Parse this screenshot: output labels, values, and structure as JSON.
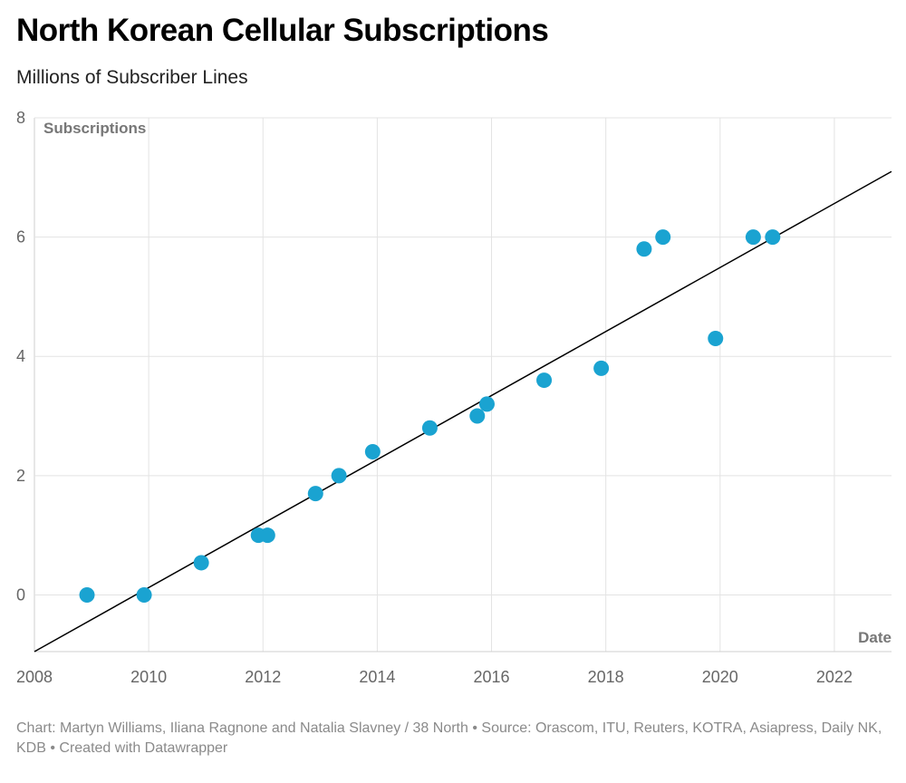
{
  "title": "North Korean Cellular Subscriptions",
  "subtitle": "Millions of Subscriber Lines",
  "footer": "Chart: Martyn Williams, Iliana Ragnone and Natalia Slavney / 38 North • Source: Orascom, ITU, Reuters, KOTRA, Asiapress, Daily NK, KDB • Created with Datawrapper",
  "colors": {
    "point": "#1aa3d1",
    "trend": "#000000",
    "grid": "#e3e3e3",
    "axis_label": "#777777",
    "tick": "#666666"
  },
  "chart_data": {
    "type": "scatter",
    "ylabel": "Subscriptions",
    "xlabel": "Date",
    "xlim": [
      2008,
      2023
    ],
    "ylim": [
      -0.95,
      8
    ],
    "x_ticks": [
      2008,
      2010,
      2012,
      2014,
      2016,
      2018,
      2020,
      2022
    ],
    "y_ticks": [
      0,
      2,
      4,
      6,
      8
    ],
    "grid": true,
    "points": [
      {
        "x": 2008.92,
        "y": 0.0
      },
      {
        "x": 2009.92,
        "y": 0.0
      },
      {
        "x": 2010.92,
        "y": 0.54
      },
      {
        "x": 2011.92,
        "y": 1.0
      },
      {
        "x": 2012.08,
        "y": 1.0
      },
      {
        "x": 2012.92,
        "y": 1.7
      },
      {
        "x": 2013.33,
        "y": 2.0
      },
      {
        "x": 2013.92,
        "y": 2.4
      },
      {
        "x": 2014.92,
        "y": 2.8
      },
      {
        "x": 2015.75,
        "y": 3.0
      },
      {
        "x": 2015.92,
        "y": 3.2
      },
      {
        "x": 2016.92,
        "y": 3.6
      },
      {
        "x": 2017.92,
        "y": 3.8
      },
      {
        "x": 2018.67,
        "y": 5.8
      },
      {
        "x": 2019.0,
        "y": 6.0
      },
      {
        "x": 2019.92,
        "y": 4.3
      },
      {
        "x": 2020.58,
        "y": 6.0
      },
      {
        "x": 2020.92,
        "y": 6.0
      }
    ],
    "trendline": [
      {
        "x": 2008,
        "y": -0.95
      },
      {
        "x": 2023,
        "y": 7.1
      }
    ]
  }
}
